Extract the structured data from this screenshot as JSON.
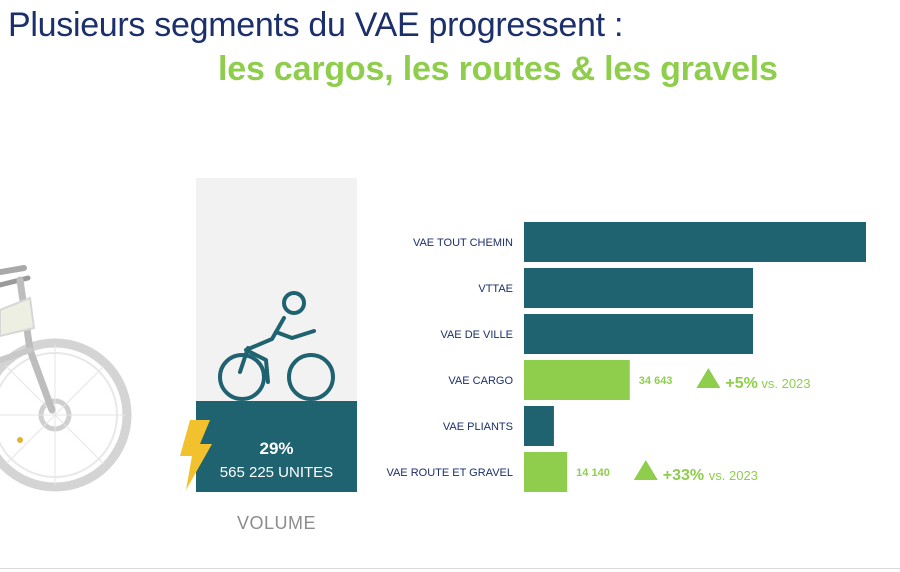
{
  "header": {
    "title_line1": "Plusieurs segments du VAE progressent :",
    "title_line2": "les cargos, les routes & les gravels"
  },
  "summary": {
    "percent": "29%",
    "units": "565 225 UNITES",
    "caption": "VOLUME"
  },
  "colors": {
    "title_navy": "#1b2f6b",
    "accent_green": "#8fce4c",
    "bar_teal": "#1f6270",
    "panel_gray": "#f2f2f2",
    "bolt_yellow": "#f2c12e"
  },
  "icons": [
    "cyclist-icon",
    "lightning-bolt-icon",
    "e-bike-illustration",
    "triangle-up-icon"
  ],
  "chart_data": {
    "type": "bar",
    "orientation": "horizontal",
    "categories": [
      "VAE TOUT CHEMIN",
      "VTTAE",
      "VAE DE VILLE",
      "VAE CARGO",
      "VAE PLIANTS",
      "VAE ROUTE ET GRAVEL"
    ],
    "values": [
      112000,
      75000,
      75000,
      34643,
      9800,
      14140
    ],
    "highlight": [
      false,
      false,
      false,
      true,
      false,
      true
    ],
    "data_labels": [
      "",
      "",
      "",
      "34 643",
      "",
      "14 140"
    ],
    "annotations": [
      {
        "category": "VAE CARGO",
        "change": "+5%",
        "suffix": "vs. 2023"
      },
      {
        "category": "VAE ROUTE ET GRAVEL",
        "change": "+33%",
        "suffix": "vs. 2023"
      }
    ],
    "xlim": [
      0,
      112000
    ],
    "grid": false,
    "legend": "none"
  }
}
